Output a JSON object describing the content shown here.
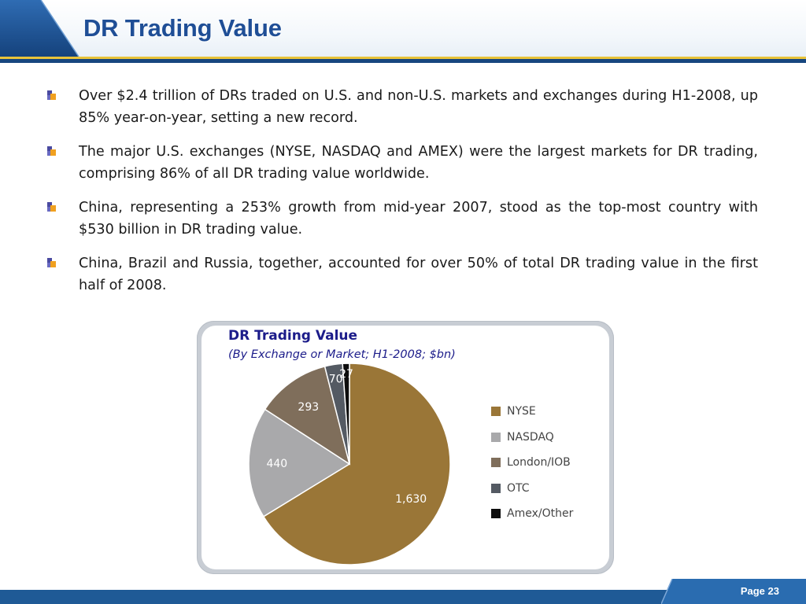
{
  "slide": {
    "title": "DR Trading Value",
    "page": "Page 23"
  },
  "bullets": [
    "Over $2.4 trillion of DRs traded on U.S. and non-U.S. markets and exchanges during H1-2008, up 85% year-on-year, setting a new record.",
    "The major U.S. exchanges (NYSE, NASDAQ and AMEX) were the largest markets for DR trading, comprising 86% of all DR trading value worldwide.",
    "China, representing a 253% growth from mid-year 2007, stood as the top-most country with $530 billion in DR trading value.",
    "China, Brazil and Russia, together, accounted for over 50% of total DR trading value in the first half of 2008."
  ],
  "colors": {
    "title": "#1f4e96",
    "header_band": "#17467f",
    "accent_yellow": "#e8c33a",
    "footer": "#1f5a96",
    "chart_title": "#1c1c8a"
  },
  "chart_data": {
    "type": "pie",
    "title": "DR Trading Value",
    "subtitle": "(By Exchange or Market; H1-2008; $bn)",
    "categories": [
      "NYSE",
      "NASDAQ",
      "London/IOB",
      "OTC",
      "Amex/Other"
    ],
    "values": [
      1630,
      440,
      293,
      70,
      27
    ],
    "data_labels": [
      "1,630",
      "440",
      "293",
      "70",
      "27"
    ],
    "colors": [
      "#9a7637",
      "#a9a9ab",
      "#7f6e5b",
      "#545a63",
      "#0d0d0d"
    ],
    "label_colors": [
      "#ffffff",
      "#ffffff",
      "#ffffff",
      "#ffffff",
      "#ffffff"
    ],
    "legend_position": "right",
    "start": "top",
    "direction": "clockwise"
  }
}
